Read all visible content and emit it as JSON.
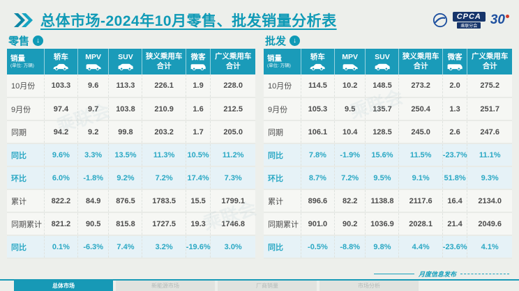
{
  "title": {
    "text": "总体市场-2024年10月零售、批发销量分析表",
    "accent_color": "#0f9ab6"
  },
  "logos": {
    "cpca_text": "CPCA",
    "cpca_sub": "乘联分会",
    "anniversary": "30"
  },
  "columns": {
    "first_header": "销量",
    "first_sub": "(单位: 万辆)",
    "cols": [
      {
        "label": "轿车",
        "icon": "sedan-icon"
      },
      {
        "label": "MPV",
        "icon": "mpv-icon"
      },
      {
        "label": "SUV",
        "icon": "suv-icon"
      },
      {
        "label": "狭义乘用车",
        "label2": "合计"
      },
      {
        "label": "微客",
        "icon": "minibus-icon"
      },
      {
        "label": "广义乘用车",
        "label2": "合计"
      }
    ]
  },
  "tables": [
    {
      "id": "retail",
      "section_label": "零售",
      "rows": [
        {
          "label": "10月份",
          "values": [
            "103.3",
            "9.6",
            "113.3",
            "226.1",
            "1.9",
            "228.0"
          ],
          "highlight": false
        },
        {
          "label": "9月份",
          "values": [
            "97.4",
            "9.7",
            "103.8",
            "210.9",
            "1.6",
            "212.5"
          ],
          "highlight": false
        },
        {
          "label": "同期",
          "values": [
            "94.2",
            "9.2",
            "99.8",
            "203.2",
            "1.7",
            "205.0"
          ],
          "highlight": false
        },
        {
          "label": "同比",
          "values": [
            "9.6%",
            "3.3%",
            "13.5%",
            "11.3%",
            "10.5%",
            "11.2%"
          ],
          "highlight": true
        },
        {
          "label": "环比",
          "values": [
            "6.0%",
            "-1.8%",
            "9.2%",
            "7.2%",
            "17.4%",
            "7.3%"
          ],
          "highlight": true
        },
        {
          "label": "累计",
          "values": [
            "822.2",
            "84.9",
            "876.5",
            "1783.5",
            "15.5",
            "1799.1"
          ],
          "highlight": false
        },
        {
          "label": "同期累计",
          "values": [
            "821.2",
            "90.5",
            "815.8",
            "1727.5",
            "19.3",
            "1746.8"
          ],
          "highlight": false
        },
        {
          "label": "同比",
          "values": [
            "0.1%",
            "-6.3%",
            "7.4%",
            "3.2%",
            "-19.6%",
            "3.0%"
          ],
          "highlight": true
        }
      ]
    },
    {
      "id": "wholesale",
      "section_label": "批发",
      "rows": [
        {
          "label": "10月份",
          "values": [
            "114.5",
            "10.2",
            "148.5",
            "273.2",
            "2.0",
            "275.2"
          ],
          "highlight": false
        },
        {
          "label": "9月份",
          "values": [
            "105.3",
            "9.5",
            "135.7",
            "250.4",
            "1.3",
            "251.7"
          ],
          "highlight": false
        },
        {
          "label": "同期",
          "values": [
            "106.1",
            "10.4",
            "128.5",
            "245.0",
            "2.6",
            "247.6"
          ],
          "highlight": false
        },
        {
          "label": "同比",
          "values": [
            "7.8%",
            "-1.9%",
            "15.6%",
            "11.5%",
            "-23.7%",
            "11.1%"
          ],
          "highlight": true
        },
        {
          "label": "环比",
          "values": [
            "8.7%",
            "7.2%",
            "9.5%",
            "9.1%",
            "51.8%",
            "9.3%"
          ],
          "highlight": true
        },
        {
          "label": "累计",
          "values": [
            "896.6",
            "82.2",
            "1138.8",
            "2117.6",
            "16.4",
            "2134.0"
          ],
          "highlight": false
        },
        {
          "label": "同期累计",
          "values": [
            "901.0",
            "90.2",
            "1036.9",
            "2028.1",
            "21.4",
            "2049.6"
          ],
          "highlight": false
        },
        {
          "label": "同比",
          "values": [
            "-0.5%",
            "-8.8%",
            "9.8%",
            "4.4%",
            "-23.6%",
            "4.1%"
          ],
          "highlight": true
        }
      ]
    }
  ],
  "footer": {
    "tabs": [
      {
        "label": "总体市场",
        "active": true
      },
      {
        "label": "新能源市场",
        "active": false
      },
      {
        "label": "厂商销量",
        "active": false
      },
      {
        "label": "市场分析",
        "active": false
      }
    ],
    "note": "月度信息发布"
  },
  "watermark": "乘联会",
  "colors": {
    "accent_teal": "#1a9bb9",
    "highlight_bg": "#e6f2f7",
    "highlight_text": "#2aa8c4",
    "page_bg": "#edefeb",
    "cpca_navy": "#17356b"
  },
  "chart_data": [
    {
      "type": "table",
      "title": "零售",
      "columns": [
        "销量(单位:万辆)",
        "轿车",
        "MPV",
        "SUV",
        "狭义乘用车合计",
        "微客",
        "广义乘用车合计"
      ],
      "rows": [
        [
          "10月份",
          103.3,
          9.6,
          113.3,
          226.1,
          1.9,
          228.0
        ],
        [
          "9月份",
          97.4,
          9.7,
          103.8,
          210.9,
          1.6,
          212.5
        ],
        [
          "同期",
          94.2,
          9.2,
          99.8,
          203.2,
          1.7,
          205.0
        ],
        [
          "同比",
          "9.6%",
          "3.3%",
          "13.5%",
          "11.3%",
          "10.5%",
          "11.2%"
        ],
        [
          "环比",
          "6.0%",
          "-1.8%",
          "9.2%",
          "7.2%",
          "17.4%",
          "7.3%"
        ],
        [
          "累计",
          822.2,
          84.9,
          876.5,
          1783.5,
          15.5,
          1799.1
        ],
        [
          "同期累计",
          821.2,
          90.5,
          815.8,
          1727.5,
          19.3,
          1746.8
        ],
        [
          "同比",
          "0.1%",
          "-6.3%",
          "7.4%",
          "3.2%",
          "-19.6%",
          "3.0%"
        ]
      ]
    },
    {
      "type": "table",
      "title": "批发",
      "columns": [
        "销量(单位:万辆)",
        "轿车",
        "MPV",
        "SUV",
        "狭义乘用车合计",
        "微客",
        "广义乘用车合计"
      ],
      "rows": [
        [
          "10月份",
          114.5,
          10.2,
          148.5,
          273.2,
          2.0,
          275.2
        ],
        [
          "9月份",
          105.3,
          9.5,
          135.7,
          250.4,
          1.3,
          251.7
        ],
        [
          "同期",
          106.1,
          10.4,
          128.5,
          245.0,
          2.6,
          247.6
        ],
        [
          "同比",
          "7.8%",
          "-1.9%",
          "15.6%",
          "11.5%",
          "-23.7%",
          "11.1%"
        ],
        [
          "环比",
          "8.7%",
          "7.2%",
          "9.5%",
          "9.1%",
          "51.8%",
          "9.3%"
        ],
        [
          "累计",
          896.6,
          82.2,
          1138.8,
          2117.6,
          16.4,
          2134.0
        ],
        [
          "同期累计",
          901.0,
          90.2,
          1036.9,
          2028.1,
          21.4,
          2049.6
        ],
        [
          "同比",
          "-0.5%",
          "-8.8%",
          "9.8%",
          "4.4%",
          "-23.6%",
          "4.1%"
        ]
      ]
    }
  ]
}
